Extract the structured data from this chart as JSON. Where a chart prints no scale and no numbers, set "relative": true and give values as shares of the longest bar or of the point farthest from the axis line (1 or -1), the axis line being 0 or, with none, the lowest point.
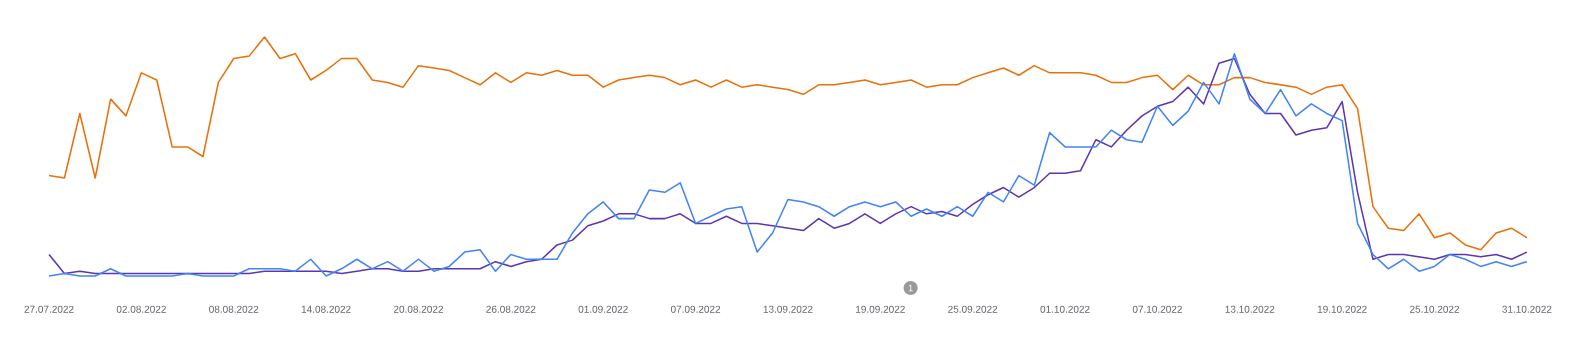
{
  "chart_data": {
    "type": "line",
    "relative": true,
    "x": [
      "2022-07-27",
      "2022-07-28",
      "2022-07-29",
      "2022-07-30",
      "2022-07-31",
      "2022-08-01",
      "2022-08-02",
      "2022-08-03",
      "2022-08-04",
      "2022-08-05",
      "2022-08-06",
      "2022-08-07",
      "2022-08-08",
      "2022-08-09",
      "2022-08-10",
      "2022-08-11",
      "2022-08-12",
      "2022-08-13",
      "2022-08-14",
      "2022-08-15",
      "2022-08-16",
      "2022-08-17",
      "2022-08-18",
      "2022-08-19",
      "2022-08-20",
      "2022-08-21",
      "2022-08-22",
      "2022-08-23",
      "2022-08-24",
      "2022-08-25",
      "2022-08-26",
      "2022-08-27",
      "2022-08-28",
      "2022-08-29",
      "2022-08-30",
      "2022-08-31",
      "2022-09-01",
      "2022-09-02",
      "2022-09-03",
      "2022-09-04",
      "2022-09-05",
      "2022-09-06",
      "2022-09-07",
      "2022-09-08",
      "2022-09-09",
      "2022-09-10",
      "2022-09-11",
      "2022-09-12",
      "2022-09-13",
      "2022-09-14",
      "2022-09-15",
      "2022-09-16",
      "2022-09-17",
      "2022-09-18",
      "2022-09-19",
      "2022-09-20",
      "2022-09-21",
      "2022-09-22",
      "2022-09-23",
      "2022-09-24",
      "2022-09-25",
      "2022-09-26",
      "2022-09-27",
      "2022-09-28",
      "2022-09-29",
      "2022-09-30",
      "2022-10-01",
      "2022-10-02",
      "2022-10-03",
      "2022-10-04",
      "2022-10-05",
      "2022-10-06",
      "2022-10-07",
      "2022-10-08",
      "2022-10-09",
      "2022-10-10",
      "2022-10-11",
      "2022-10-12",
      "2022-10-13",
      "2022-10-14",
      "2022-10-15",
      "2022-10-16",
      "2022-10-17",
      "2022-10-18",
      "2022-10-19",
      "2022-10-20",
      "2022-10-21",
      "2022-10-22",
      "2022-10-23",
      "2022-10-24",
      "2022-10-25",
      "2022-10-26",
      "2022-10-27",
      "2022-10-28",
      "2022-10-29",
      "2022-10-30",
      "2022-10-31"
    ],
    "series": [
      {
        "color": "#e8710a",
        "values": [
          0.42,
          0.41,
          0.68,
          0.41,
          0.74,
          0.67,
          0.85,
          0.82,
          0.54,
          0.54,
          0.5,
          0.81,
          0.91,
          0.92,
          1.0,
          0.91,
          0.93,
          0.82,
          0.86,
          0.91,
          0.91,
          0.82,
          0.81,
          0.79,
          0.88,
          0.87,
          0.86,
          0.83,
          0.8,
          0.85,
          0.81,
          0.85,
          0.84,
          0.86,
          0.84,
          0.84,
          0.79,
          0.82,
          0.83,
          0.84,
          0.83,
          0.8,
          0.82,
          0.79,
          0.82,
          0.79,
          0.8,
          0.79,
          0.78,
          0.76,
          0.8,
          0.8,
          0.81,
          0.82,
          0.8,
          0.81,
          0.82,
          0.79,
          0.8,
          0.8,
          0.83,
          0.85,
          0.87,
          0.84,
          0.88,
          0.85,
          0.85,
          0.85,
          0.84,
          0.81,
          0.81,
          0.83,
          0.84,
          0.78,
          0.84,
          0.8,
          0.8,
          0.83,
          0.83,
          0.81,
          0.8,
          0.79,
          0.76,
          0.79,
          0.8,
          0.7,
          0.29,
          0.2,
          0.19,
          0.26,
          0.16,
          0.18,
          0.13,
          0.11,
          0.18,
          0.2,
          0.16
        ]
      },
      {
        "color": "#5e35b1",
        "values": [
          0.09,
          0.01,
          0.02,
          0.01,
          0.01,
          0.01,
          0.01,
          0.01,
          0.01,
          0.01,
          0.01,
          0.01,
          0.01,
          0.01,
          0.02,
          0.02,
          0.02,
          0.02,
          0.02,
          0.01,
          0.02,
          0.03,
          0.03,
          0.02,
          0.02,
          0.03,
          0.03,
          0.03,
          0.03,
          0.06,
          0.04,
          0.06,
          0.07,
          0.13,
          0.15,
          0.21,
          0.23,
          0.26,
          0.26,
          0.24,
          0.24,
          0.26,
          0.22,
          0.22,
          0.25,
          0.22,
          0.22,
          0.21,
          0.2,
          0.19,
          0.24,
          0.2,
          0.22,
          0.26,
          0.22,
          0.26,
          0.29,
          0.26,
          0.27,
          0.25,
          0.3,
          0.34,
          0.37,
          0.33,
          0.37,
          0.43,
          0.43,
          0.44,
          0.57,
          0.54,
          0.61,
          0.67,
          0.71,
          0.73,
          0.79,
          0.72,
          0.89,
          0.91,
          0.76,
          0.68,
          0.68,
          0.59,
          0.61,
          0.62,
          0.73,
          0.35,
          0.07,
          0.09,
          0.09,
          0.08,
          0.07,
          0.09,
          0.09,
          0.08,
          0.09,
          0.07,
          0.1
        ]
      },
      {
        "color": "#4285f4",
        "values": [
          0.0,
          0.01,
          0.0,
          0.0,
          0.03,
          0.0,
          0.0,
          0.0,
          0.0,
          0.01,
          0.0,
          0.0,
          0.0,
          0.03,
          0.03,
          0.03,
          0.02,
          0.07,
          0.0,
          0.03,
          0.07,
          0.03,
          0.06,
          0.02,
          0.07,
          0.02,
          0.04,
          0.1,
          0.11,
          0.02,
          0.09,
          0.07,
          0.07,
          0.07,
          0.18,
          0.26,
          0.31,
          0.24,
          0.24,
          0.36,
          0.35,
          0.39,
          0.22,
          0.25,
          0.28,
          0.29,
          0.1,
          0.18,
          0.32,
          0.31,
          0.29,
          0.25,
          0.29,
          0.31,
          0.29,
          0.31,
          0.25,
          0.28,
          0.25,
          0.29,
          0.25,
          0.35,
          0.31,
          0.42,
          0.38,
          0.6,
          0.54,
          0.54,
          0.54,
          0.61,
          0.57,
          0.56,
          0.71,
          0.63,
          0.69,
          0.81,
          0.72,
          0.93,
          0.74,
          0.68,
          0.78,
          0.67,
          0.72,
          0.68,
          0.65,
          0.22,
          0.09,
          0.03,
          0.07,
          0.02,
          0.04,
          0.09,
          0.07,
          0.04,
          0.06,
          0.04,
          0.06
        ]
      }
    ],
    "xlim": [
      "2022-07-27",
      "2022-10-31"
    ],
    "xticks": [
      {
        "value": "2022-07-27",
        "label": "27.07.2022"
      },
      {
        "value": "2022-08-02",
        "label": "02.08.2022"
      },
      {
        "value": "2022-08-08",
        "label": "08.08.2022"
      },
      {
        "value": "2022-08-14",
        "label": "14.08.2022"
      },
      {
        "value": "2022-08-20",
        "label": "20.08.2022"
      },
      {
        "value": "2022-08-26",
        "label": "26.08.2022"
      },
      {
        "value": "2022-09-01",
        "label": "01.09.2022"
      },
      {
        "value": "2022-09-07",
        "label": "07.09.2022"
      },
      {
        "value": "2022-09-13",
        "label": "13.09.2022"
      },
      {
        "value": "2022-09-19",
        "label": "19.09.2022"
      },
      {
        "value": "2022-09-25",
        "label": "25.09.2022"
      },
      {
        "value": "2022-10-01",
        "label": "01.10.2022"
      },
      {
        "value": "2022-10-07",
        "label": "07.10.2022"
      },
      {
        "value": "2022-10-13",
        "label": "13.10.2022"
      },
      {
        "value": "2022-10-19",
        "label": "19.10.2022"
      },
      {
        "value": "2022-10-25",
        "label": "25.10.2022"
      },
      {
        "value": "2022-10-31",
        "label": "31.10.2022"
      }
    ],
    "annotations": [
      "1"
    ],
    "line_style": "solid",
    "marker": "none",
    "grid": false
  }
}
